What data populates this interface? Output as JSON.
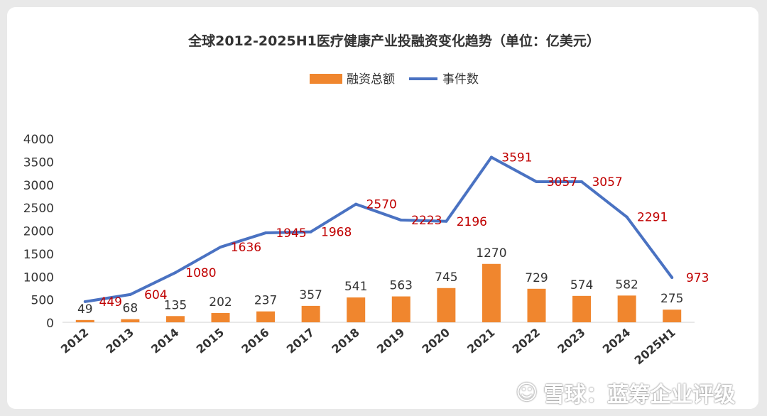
{
  "chart_data": {
    "type": "bar+line",
    "title": "全球2012-2025H1医疗健康产业投融资变化趋势（单位：亿美元）",
    "legend": {
      "bars": "融资总额",
      "line": "事件数",
      "placement": "top-center"
    },
    "categories": [
      "2012",
      "2013",
      "2014",
      "2015",
      "2016",
      "2017",
      "2018",
      "2019",
      "2020",
      "2021",
      "2022",
      "2023",
      "2024",
      "2025H1"
    ],
    "series": [
      {
        "name": "融资总额",
        "kind": "bar",
        "color": "#F0862E",
        "values": [
          49,
          68,
          135,
          202,
          237,
          357,
          541,
          563,
          745,
          1270,
          729,
          574,
          582,
          275
        ]
      },
      {
        "name": "事件数",
        "kind": "line",
        "color": "#4A72C2",
        "values": [
          449,
          604,
          1080,
          1636,
          1945,
          1968,
          2570,
          2223,
          2196,
          3591,
          3057,
          3057,
          2291,
          973
        ]
      }
    ],
    "yticks": [
      "0",
      "500",
      "1000",
      "1500",
      "2000",
      "2500",
      "3000",
      "3500",
      "4000"
    ],
    "ylim": [
      0,
      4000
    ],
    "grid": false,
    "label_colors": {
      "bar": "#333333",
      "line": "#C00000"
    }
  },
  "watermark": {
    "logo": "☺",
    "text": "雪球：蓝筹企业评级"
  }
}
